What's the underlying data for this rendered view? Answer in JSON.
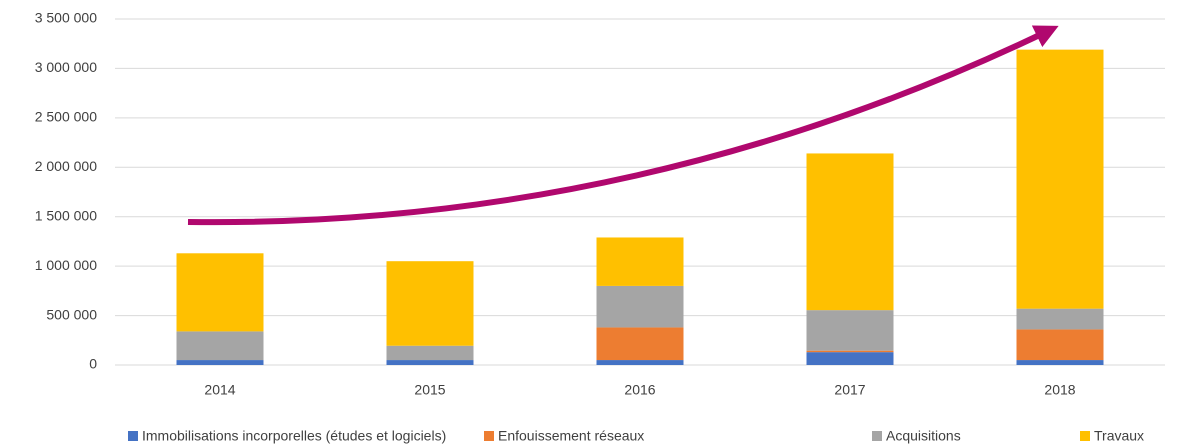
{
  "chart_data": {
    "type": "stacked_bar",
    "categories": [
      "2014",
      "2015",
      "2016",
      "2017",
      "2018"
    ],
    "series": [
      {
        "name": "Immobilisations incorporelles (études et logiciels)",
        "color": "#4472c4",
        "values": [
          50000,
          50000,
          50000,
          130000,
          50000
        ]
      },
      {
        "name": "Enfouissement réseaux",
        "color": "#ed7d31",
        "values": [
          0,
          0,
          330000,
          15000,
          310000
        ]
      },
      {
        "name": "Acquisitions",
        "color": "#a5a5a5",
        "values": [
          290000,
          145000,
          420000,
          410000,
          210000
        ]
      },
      {
        "name": "Travaux",
        "color": "#ffc000",
        "values": [
          790000,
          855000,
          490000,
          1585000,
          2620000
        ]
      }
    ],
    "ylim": [
      0,
      3500000
    ],
    "yticks": [
      {
        "value": 0,
        "label": "0"
      },
      {
        "value": 500000,
        "label": "500 000"
      },
      {
        "value": 1000000,
        "label": "1 000 000"
      },
      {
        "value": 1500000,
        "label": "1 500 000"
      },
      {
        "value": 2000000,
        "label": "2 000 000"
      },
      {
        "value": 2500000,
        "label": "2 500 000"
      },
      {
        "value": 3000000,
        "label": "3 000 000"
      },
      {
        "value": 3500000,
        "label": "3 500 000"
      }
    ],
    "grid": true
  }
}
